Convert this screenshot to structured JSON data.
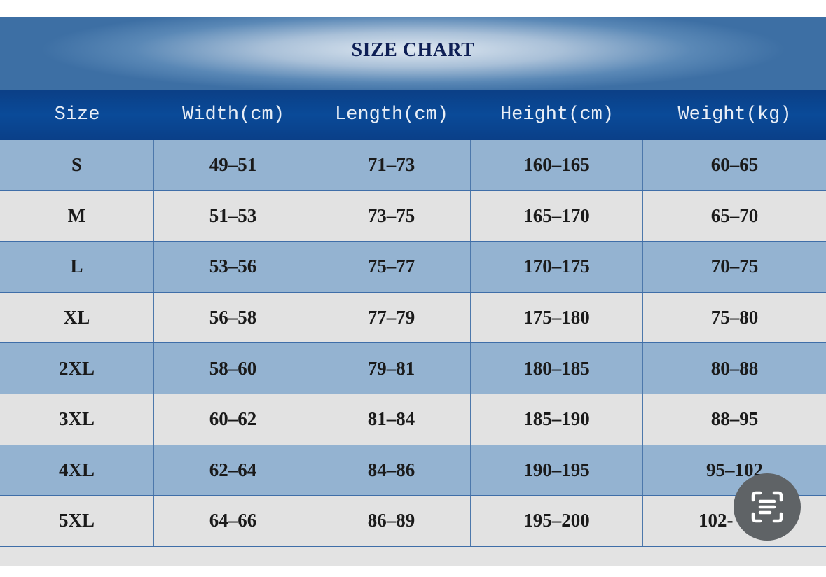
{
  "title": "SIZE CHART",
  "columns": [
    "Size",
    "Width(cm)",
    "Length(cm)",
    "Height(cm)",
    "Weight(kg)"
  ],
  "rows": [
    [
      "S",
      "49-51",
      "71-73",
      "160-165",
      "60-65"
    ],
    [
      "M",
      "51-53",
      "73-75",
      "165-170",
      "65-70"
    ],
    [
      "L",
      "53-56",
      "75-77",
      "170-175",
      "70-75"
    ],
    [
      "XL",
      "56-58",
      "77-79",
      "175-180",
      "75-80"
    ],
    [
      "2XL",
      "58-60",
      "79-81",
      "180-185",
      "80-88"
    ],
    [
      "3XL",
      "60-62",
      "81-84",
      "185-190",
      "88-95"
    ],
    [
      "4XL",
      "62-64",
      "84-86",
      "190-195",
      "95-102"
    ],
    [
      "5XL",
      "64-66",
      "86-89",
      "195-200",
      "102-"
    ]
  ],
  "colors": {
    "header": "#0a4a98",
    "row_blue": "#94b3d1",
    "row_gray": "#e2e2e2",
    "title": "#0e1f55"
  },
  "overlay": {
    "icon": "text-scan-icon"
  }
}
